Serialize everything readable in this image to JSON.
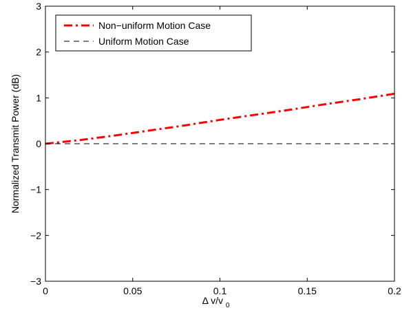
{
  "chart_data": {
    "type": "line",
    "title": "",
    "xlabel": "Δ v/v",
    "xlabel_subscript": "0",
    "ylabel": "Normalized Transmit Power (dB)",
    "xlim": [
      0,
      0.2
    ],
    "ylim": [
      -3,
      3
    ],
    "xticks": [
      0,
      0.05,
      0.1,
      0.15,
      0.2
    ],
    "xtick_labels": [
      "0",
      "0.05",
      "0.1",
      "0.15",
      "0.2"
    ],
    "yticks": [
      -3,
      -2,
      -1,
      0,
      1,
      2,
      3
    ],
    "ytick_labels": [
      "−3",
      "−2",
      "−1",
      "0",
      "1",
      "2",
      "3"
    ],
    "grid": false,
    "legend_position": "top-left",
    "series": [
      {
        "name": "Non−uniform Motion Case",
        "color": "#ff0000",
        "style": "dash-dot",
        "x": [
          0,
          0.02,
          0.04,
          0.06,
          0.08,
          0.1,
          0.12,
          0.14,
          0.16,
          0.18,
          0.2
        ],
        "y": [
          0,
          0.08,
          0.18,
          0.29,
          0.4,
          0.52,
          0.63,
          0.74,
          0.86,
          0.97,
          1.09
        ]
      },
      {
        "name": "Uniform Motion Case",
        "color": "#000000",
        "style": "dashed",
        "x": [
          0,
          0.2
        ],
        "y": [
          0,
          0
        ]
      }
    ]
  }
}
